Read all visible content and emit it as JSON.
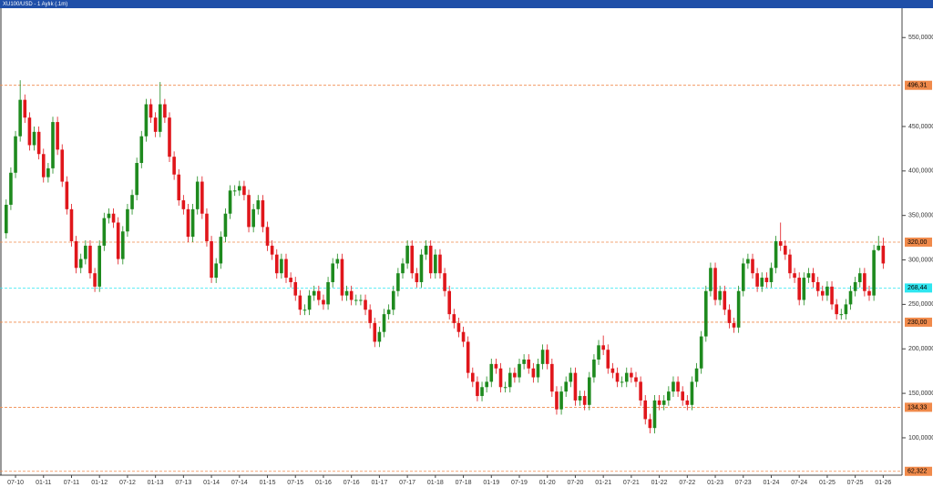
{
  "chart_data": {
    "type": "candlestick",
    "title": "XU100/USD - 1 Aylık (.1m)",
    "up_color": "#1e8a1e",
    "down_color": "#e0161b",
    "ylim": [
      58,
      583
    ],
    "yticks": [
      {
        "value": 100,
        "label": "100,0000"
      },
      {
        "value": 150,
        "label": "150,0000"
      },
      {
        "value": 200,
        "label": "200,0000"
      },
      {
        "value": 250,
        "label": "250,0000"
      },
      {
        "value": 300,
        "label": "300,0000"
      },
      {
        "value": 350,
        "label": "350,0000"
      },
      {
        "value": 400,
        "label": "400,0000"
      },
      {
        "value": 450,
        "label": "450,0000"
      },
      {
        "value": 550,
        "label": "550,0000"
      }
    ],
    "levels": [
      {
        "value": 496.31,
        "label": "496,31",
        "color": "#f08a4b"
      },
      {
        "value": 320,
        "label": "320,00",
        "color": "#f08a4b"
      },
      {
        "value": 268.44,
        "label": "268,44",
        "color": "#2ee6f0"
      },
      {
        "value": 230,
        "label": "230,00",
        "color": "#f08a4b"
      },
      {
        "value": 134.33,
        "label": "134,33",
        "color": "#f08a4b"
      },
      {
        "value": 62.322,
        "label": "62,322",
        "color": "#f08a4b"
      }
    ],
    "categories": [
      null,
      null,
      "07-10",
      null,
      null,
      null,
      null,
      null,
      "01-11",
      null,
      null,
      null,
      null,
      null,
      "07-11",
      null,
      null,
      null,
      null,
      null,
      "01-12",
      null,
      null,
      null,
      null,
      null,
      "07-12",
      null,
      null,
      null,
      null,
      null,
      "01-13",
      null,
      null,
      null,
      null,
      null,
      "07-13",
      null,
      null,
      null,
      null,
      null,
      "01-14",
      null,
      null,
      null,
      null,
      null,
      "07-14",
      null,
      null,
      null,
      null,
      null,
      "01-15",
      null,
      null,
      null,
      null,
      null,
      "07-15",
      null,
      null,
      null,
      null,
      null,
      "01-16",
      null,
      null,
      null,
      null,
      null,
      "07-16",
      null,
      null,
      null,
      null,
      null,
      "01-17",
      null,
      null,
      null,
      null,
      null,
      "07-17",
      null,
      null,
      null,
      null,
      null,
      "01-18",
      null,
      null,
      null,
      null,
      null,
      "07-18",
      null,
      null,
      null,
      null,
      null,
      "01-19",
      null,
      null,
      null,
      null,
      null,
      "07-19",
      null,
      null,
      null,
      null,
      null,
      "01-20",
      null,
      null,
      null,
      null,
      null,
      "07-20",
      null,
      null,
      null,
      null,
      null,
      "01-21",
      null,
      null,
      null,
      null,
      null,
      "07-21",
      null,
      null,
      null,
      null,
      null,
      "01-22",
      null,
      null,
      null,
      null,
      null,
      "07-22",
      null,
      null,
      null,
      null,
      null,
      "01-23",
      null,
      null,
      null,
      null,
      null,
      "07-23",
      null,
      null,
      null,
      null,
      null,
      "01-24",
      null,
      null,
      null,
      null,
      null,
      "07-24",
      null,
      null,
      null,
      null,
      null,
      "01-25",
      null,
      null,
      null,
      null,
      null,
      "07-25",
      null,
      null,
      null,
      null,
      null,
      "01-26"
    ],
    "ohlc": [
      [
        330,
        368,
        324,
        362
      ],
      [
        362,
        404,
        356,
        398
      ],
      [
        398,
        445,
        392,
        439
      ],
      [
        439,
        502,
        433,
        480
      ],
      [
        480,
        486,
        454,
        460
      ],
      [
        460,
        466,
        423,
        429
      ],
      [
        429,
        450,
        423,
        444
      ],
      [
        444,
        450,
        413,
        419
      ],
      [
        419,
        425,
        387,
        393
      ],
      [
        393,
        409,
        387,
        403
      ],
      [
        403,
        461,
        397,
        455
      ],
      [
        455,
        461,
        418,
        424
      ],
      [
        424,
        430,
        382,
        388
      ],
      [
        388,
        394,
        351,
        357
      ],
      [
        357,
        363,
        315,
        321
      ],
      [
        321,
        327,
        285,
        291
      ],
      [
        291,
        307,
        285,
        301
      ],
      [
        301,
        322,
        295,
        316
      ],
      [
        316,
        322,
        279,
        285
      ],
      [
        285,
        291,
        264,
        270
      ],
      [
        270,
        322,
        264,
        316
      ],
      [
        316,
        353,
        310,
        347
      ],
      [
        347,
        358,
        341,
        352
      ],
      [
        352,
        358,
        336,
        342
      ],
      [
        342,
        348,
        295,
        301
      ],
      [
        301,
        338,
        295,
        332
      ],
      [
        332,
        363,
        326,
        357
      ],
      [
        357,
        379,
        351,
        373
      ],
      [
        373,
        415,
        367,
        409
      ],
      [
        409,
        445,
        403,
        439
      ],
      [
        439,
        481,
        433,
        475
      ],
      [
        475,
        481,
        454,
        460
      ],
      [
        460,
        466,
        438,
        444
      ],
      [
        444,
        500,
        438,
        475
      ],
      [
        475,
        481,
        454,
        460
      ],
      [
        460,
        466,
        410,
        416
      ],
      [
        416,
        422,
        390,
        396
      ],
      [
        396,
        402,
        361,
        367
      ],
      [
        367,
        373,
        351,
        357
      ],
      [
        357,
        363,
        320,
        326
      ],
      [
        326,
        363,
        320,
        357
      ],
      [
        357,
        394,
        351,
        388
      ],
      [
        388,
        394,
        346,
        352
      ],
      [
        352,
        358,
        315,
        321
      ],
      [
        321,
        327,
        274,
        280
      ],
      [
        280,
        302,
        274,
        296
      ],
      [
        296,
        332,
        290,
        326
      ],
      [
        326,
        358,
        320,
        352
      ],
      [
        352,
        384,
        346,
        378
      ],
      [
        378,
        384,
        372,
        378
      ],
      [
        378,
        389,
        372,
        383
      ],
      [
        383,
        389,
        367,
        373
      ],
      [
        373,
        379,
        331,
        337
      ],
      [
        337,
        363,
        331,
        357
      ],
      [
        357,
        373,
        351,
        367
      ],
      [
        367,
        373,
        331,
        337
      ],
      [
        337,
        343,
        310,
        316
      ],
      [
        316,
        322,
        300,
        306
      ],
      [
        306,
        312,
        279,
        285
      ],
      [
        285,
        307,
        279,
        301
      ],
      [
        301,
        307,
        274,
        280
      ],
      [
        280,
        286,
        269,
        275
      ],
      [
        275,
        281,
        254,
        260
      ],
      [
        260,
        266,
        238,
        244
      ],
      [
        244,
        250,
        238,
        244
      ],
      [
        244,
        266,
        238,
        260
      ],
      [
        260,
        271,
        254,
        265
      ],
      [
        265,
        271,
        249,
        255
      ],
      [
        255,
        261,
        244,
        250
      ],
      [
        250,
        281,
        244,
        275
      ],
      [
        275,
        302,
        269,
        296
      ],
      [
        296,
        307,
        290,
        301
      ],
      [
        301,
        307,
        254,
        260
      ],
      [
        260,
        271,
        254,
        265
      ],
      [
        265,
        271,
        249,
        255
      ],
      [
        255,
        261,
        249,
        255
      ],
      [
        255,
        261,
        249,
        255
      ],
      [
        255,
        261,
        238,
        244
      ],
      [
        244,
        250,
        223,
        229
      ],
      [
        229,
        235,
        202,
        208
      ],
      [
        208,
        225,
        202,
        219
      ],
      [
        219,
        245,
        213,
        239
      ],
      [
        239,
        250,
        233,
        244
      ],
      [
        244,
        271,
        238,
        265
      ],
      [
        265,
        291,
        259,
        285
      ],
      [
        285,
        302,
        279,
        296
      ],
      [
        296,
        322,
        290,
        316
      ],
      [
        316,
        322,
        279,
        285
      ],
      [
        285,
        291,
        269,
        275
      ],
      [
        275,
        312,
        269,
        306
      ],
      [
        306,
        322,
        300,
        316
      ],
      [
        316,
        322,
        279,
        285
      ],
      [
        285,
        312,
        279,
        306
      ],
      [
        306,
        312,
        279,
        285
      ],
      [
        285,
        291,
        259,
        265
      ],
      [
        265,
        271,
        233,
        239
      ],
      [
        239,
        245,
        223,
        229
      ],
      [
        229,
        235,
        213,
        219
      ],
      [
        219,
        225,
        202,
        208
      ],
      [
        208,
        214,
        167,
        173
      ],
      [
        173,
        179,
        157,
        163
      ],
      [
        163,
        169,
        141,
        147
      ],
      [
        147,
        163,
        141,
        157
      ],
      [
        157,
        169,
        151,
        163
      ],
      [
        163,
        189,
        157,
        183
      ],
      [
        183,
        189,
        172,
        178
      ],
      [
        178,
        184,
        151,
        157
      ],
      [
        157,
        163,
        151,
        157
      ],
      [
        157,
        179,
        151,
        173
      ],
      [
        173,
        179,
        162,
        168
      ],
      [
        168,
        189,
        162,
        183
      ],
      [
        183,
        194,
        177,
        188
      ],
      [
        188,
        194,
        172,
        178
      ],
      [
        178,
        184,
        162,
        168
      ],
      [
        168,
        189,
        162,
        183
      ],
      [
        183,
        205,
        177,
        199
      ],
      [
        199,
        205,
        177,
        183
      ],
      [
        183,
        189,
        146,
        152
      ],
      [
        152,
        158,
        126,
        132
      ],
      [
        132,
        158,
        126,
        152
      ],
      [
        152,
        169,
        146,
        163
      ],
      [
        163,
        179,
        157,
        173
      ],
      [
        173,
        179,
        136,
        142
      ],
      [
        142,
        153,
        136,
        147
      ],
      [
        147,
        153,
        131,
        137
      ],
      [
        137,
        174,
        131,
        168
      ],
      [
        168,
        194,
        162,
        188
      ],
      [
        188,
        210,
        182,
        204
      ],
      [
        204,
        215,
        193,
        199
      ],
      [
        199,
        205,
        172,
        178
      ],
      [
        178,
        184,
        167,
        173
      ],
      [
        173,
        179,
        157,
        163
      ],
      [
        163,
        169,
        157,
        163
      ],
      [
        163,
        179,
        157,
        173
      ],
      [
        173,
        179,
        162,
        168
      ],
      [
        168,
        174,
        157,
        163
      ],
      [
        163,
        169,
        136,
        142
      ],
      [
        142,
        148,
        115,
        121
      ],
      [
        121,
        127,
        105,
        111
      ],
      [
        111,
        148,
        105,
        142
      ],
      [
        142,
        148,
        131,
        137
      ],
      [
        137,
        148,
        131,
        142
      ],
      [
        142,
        158,
        136,
        152
      ],
      [
        152,
        169,
        146,
        163
      ],
      [
        163,
        169,
        146,
        152
      ],
      [
        152,
        158,
        136,
        142
      ],
      [
        142,
        148,
        131,
        137
      ],
      [
        137,
        169,
        131,
        163
      ],
      [
        163,
        184,
        157,
        178
      ],
      [
        178,
        220,
        172,
        214
      ],
      [
        214,
        271,
        208,
        265
      ],
      [
        265,
        297,
        259,
        291
      ],
      [
        291,
        297,
        249,
        255
      ],
      [
        255,
        271,
        249,
        265
      ],
      [
        265,
        271,
        238,
        244
      ],
      [
        244,
        250,
        223,
        229
      ],
      [
        229,
        235,
        218,
        224
      ],
      [
        224,
        271,
        218,
        265
      ],
      [
        265,
        302,
        259,
        296
      ],
      [
        296,
        307,
        290,
        301
      ],
      [
        301,
        307,
        279,
        285
      ],
      [
        285,
        291,
        264,
        270
      ],
      [
        270,
        286,
        264,
        280
      ],
      [
        280,
        286,
        269,
        275
      ],
      [
        275,
        297,
        269,
        291
      ],
      [
        291,
        327,
        285,
        321
      ],
      [
        321,
        342,
        310,
        316
      ],
      [
        316,
        322,
        300,
        306
      ],
      [
        306,
        312,
        279,
        285
      ],
      [
        285,
        291,
        274,
        280
      ],
      [
        280,
        286,
        249,
        255
      ],
      [
        255,
        286,
        249,
        280
      ],
      [
        280,
        291,
        274,
        285
      ],
      [
        285,
        291,
        269,
        275
      ],
      [
        275,
        281,
        259,
        265
      ],
      [
        265,
        271,
        254,
        260
      ],
      [
        260,
        276,
        254,
        270
      ],
      [
        270,
        276,
        244,
        250
      ],
      [
        250,
        256,
        233,
        239
      ],
      [
        239,
        245,
        233,
        239
      ],
      [
        239,
        256,
        233,
        250
      ],
      [
        250,
        271,
        244,
        265
      ],
      [
        265,
        281,
        259,
        275
      ],
      [
        275,
        291,
        269,
        285
      ],
      [
        285,
        291,
        259,
        265
      ],
      [
        265,
        271,
        254,
        260
      ],
      [
        260,
        317,
        254,
        311
      ],
      [
        311,
        327,
        310,
        316
      ],
      [
        316,
        325,
        290,
        296
      ]
    ]
  }
}
